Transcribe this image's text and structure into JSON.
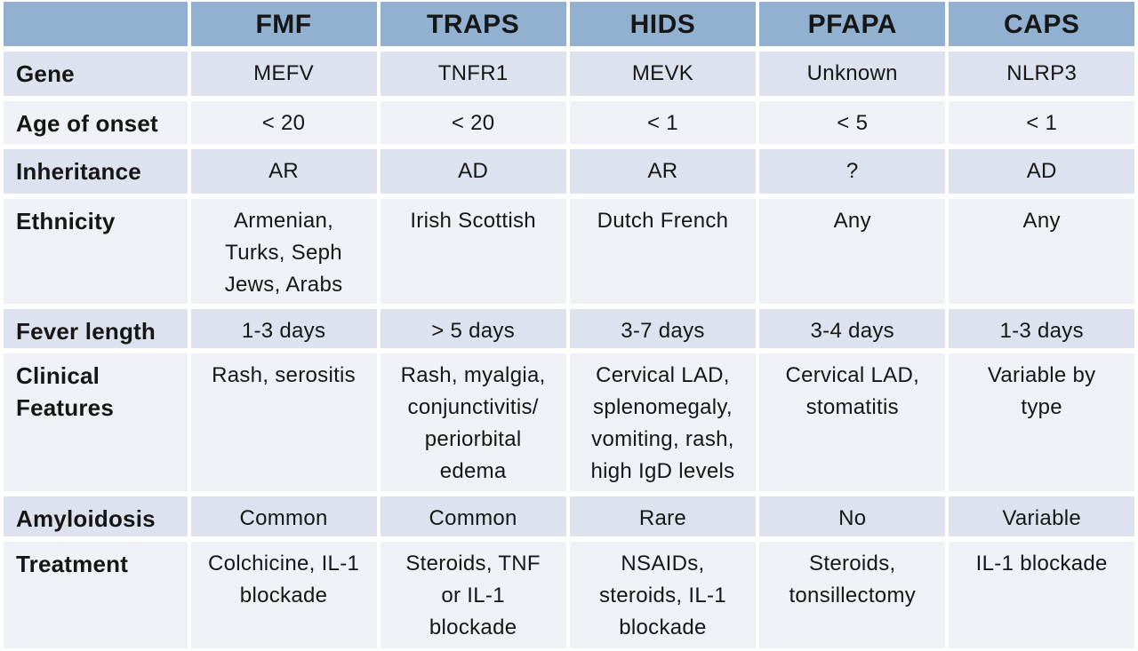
{
  "theme": {
    "header_bg": "#92B1D0",
    "row_dark": "#DCE3EE",
    "row_light": "#EEF1F6",
    "gutter": "#FFFFFF",
    "text": "#161616"
  },
  "chart_data": {
    "type": "table",
    "columns": [
      "",
      "FMF",
      "TRAPS",
      "HIDS",
      "PFAPA",
      "CAPS"
    ],
    "rows": [
      {
        "label": "Gene",
        "values": [
          "MEFV",
          "TNFR1",
          "MEVK",
          "Unknown",
          "NLRP3"
        ]
      },
      {
        "label": "Age of onset",
        "values": [
          "< 20",
          "< 20",
          "< 1",
          "< 5",
          "< 1"
        ]
      },
      {
        "label": "Inheritance",
        "values": [
          "AR",
          "AD",
          "AR",
          "?",
          "AD"
        ]
      },
      {
        "label": "Ethnicity",
        "values": [
          "Armenian,\nTurks, Seph\nJews, Arabs",
          "Irish Scottish",
          "Dutch French",
          "Any",
          "Any"
        ]
      },
      {
        "label": "Fever length",
        "values": [
          "1-3 days",
          "> 5 days",
          "3-7 days",
          "3-4 days",
          "1-3 days"
        ]
      },
      {
        "label": "Clinical Features",
        "values": [
          "Rash, serositis",
          "Rash, myalgia,\nconjunctivitis/\nperiorbital\nedema",
          "Cervical LAD,\nsplenomegaly,\nvomiting, rash,\nhigh IgD levels",
          "Cervical LAD,\nstomatitis",
          "Variable by\ntype"
        ]
      },
      {
        "label": "Amyloidosis",
        "values": [
          "Common",
          "Common",
          "Rare",
          "No",
          "Variable"
        ]
      },
      {
        "label": "Treatment",
        "values": [
          "Colchicine, IL-1\nblockade",
          "Steroids, TNF\nor IL-1\nblockade",
          "NSAIDs,\nsteroids, IL-1\nblockade",
          "Steroids,\ntonsillectomy",
          "IL-1 blockade"
        ]
      }
    ]
  }
}
